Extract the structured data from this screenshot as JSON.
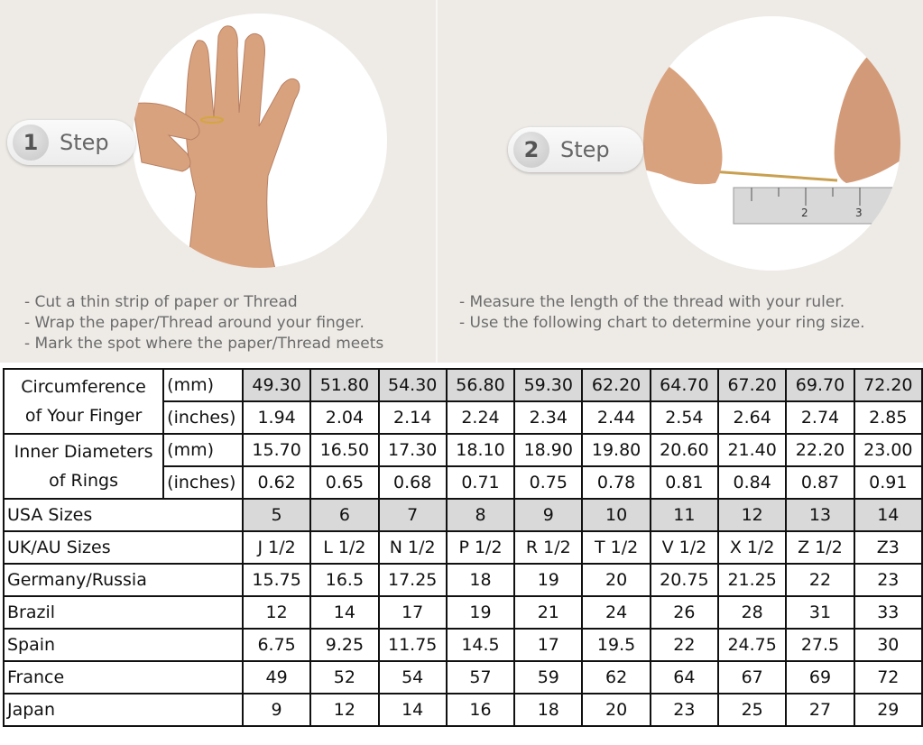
{
  "steps": [
    {
      "number": "1",
      "label": "Step",
      "instructions": [
        "- Cut a thin strip of paper or Thread",
        "- Wrap the paper/Thread around your finger.",
        "- Mark the spot where the paper/Thread meets"
      ]
    },
    {
      "number": "2",
      "label": "Step",
      "instructions": [
        "- Measure the length of the thread with your ruler.",
        "- Use the following chart to determine your ring size."
      ]
    }
  ],
  "table": {
    "circumference": {
      "label_line1": "Circumference",
      "label_line2": "of Your Finger",
      "mm_unit": "(mm)",
      "in_unit": "(inches)",
      "mm": [
        "49.30",
        "51.80",
        "54.30",
        "56.80",
        "59.30",
        "62.20",
        "64.70",
        "67.20",
        "69.70",
        "72.20"
      ],
      "inches": [
        "1.94",
        "2.04",
        "2.14",
        "2.24",
        "2.34",
        "2.44",
        "2.54",
        "2.64",
        "2.74",
        "2.85"
      ]
    },
    "diameter": {
      "label_line1": "Inner Diameters",
      "label_line2": "of Rings",
      "mm_unit": "(mm)",
      "in_unit": "(inches)",
      "mm": [
        "15.70",
        "16.50",
        "17.30",
        "18.10",
        "18.90",
        "19.80",
        "20.60",
        "21.40",
        "22.20",
        "23.00"
      ],
      "inches": [
        "0.62",
        "0.65",
        "0.68",
        "0.71",
        "0.75",
        "0.78",
        "0.81",
        "0.84",
        "0.87",
        "0.91"
      ]
    },
    "rows": [
      {
        "label": "USA Sizes",
        "values": [
          "5",
          "6",
          "7",
          "8",
          "9",
          "10",
          "11",
          "12",
          "13",
          "14"
        ]
      },
      {
        "label": "UK/AU Sizes",
        "values": [
          "J 1/2",
          "L 1/2",
          "N 1/2",
          "P 1/2",
          "R 1/2",
          "T 1/2",
          "V 1/2",
          "X 1/2",
          "Z 1/2",
          "Z3"
        ]
      },
      {
        "label": "Germany/Russia",
        "values": [
          "15.75",
          "16.5",
          "17.25",
          "18",
          "19",
          "20",
          "20.75",
          "21.25",
          "22",
          "23"
        ]
      },
      {
        "label": "Brazil",
        "values": [
          "12",
          "14",
          "17",
          "19",
          "21",
          "24",
          "26",
          "28",
          "31",
          "33"
        ]
      },
      {
        "label": "Spain",
        "values": [
          "6.75",
          "9.25",
          "11.75",
          "14.5",
          "17",
          "19.5",
          "22",
          "24.75",
          "27.5",
          "30"
        ]
      },
      {
        "label": "France",
        "values": [
          "49",
          "52",
          "54",
          "57",
          "59",
          "62",
          "64",
          "67",
          "69",
          "72"
        ]
      },
      {
        "label": "Japan",
        "values": [
          "9",
          "12",
          "14",
          "16",
          "18",
          "20",
          "23",
          "25",
          "27",
          "29"
        ]
      }
    ],
    "shade_color": "#d9d9d9"
  }
}
